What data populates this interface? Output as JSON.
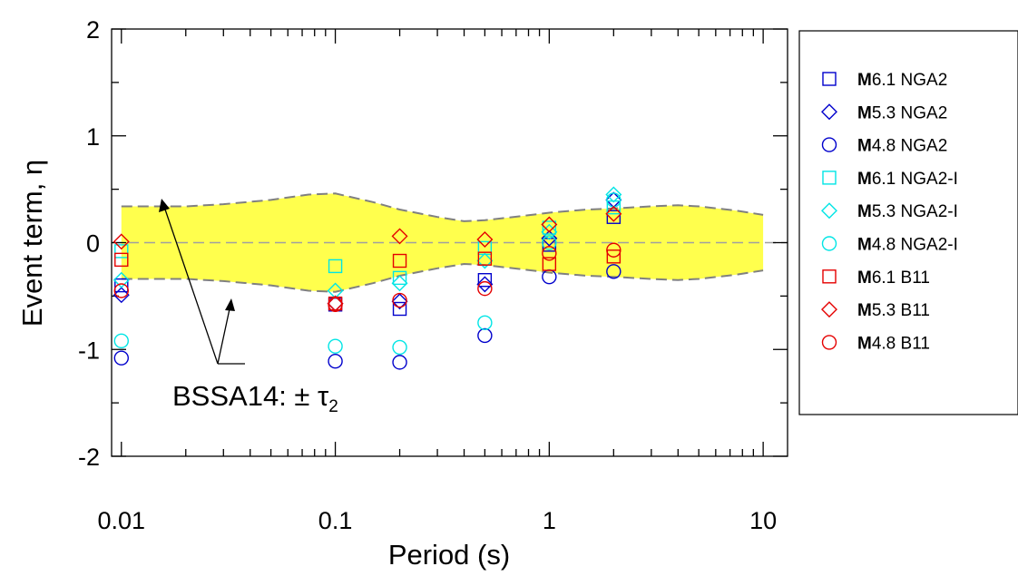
{
  "chart_data": {
    "type": "scatter",
    "xlabel": "Period (s)",
    "ylabel": "Event term, η",
    "xscale": "log",
    "xlim": [
      0.009,
      13
    ],
    "ylim": [
      -2,
      2
    ],
    "x_ticks": [
      0.01,
      0.1,
      1,
      10
    ],
    "x_tick_labels": [
      "0.01",
      "0.1",
      "1",
      "10"
    ],
    "y_ticks": [
      -2,
      -1,
      0,
      1,
      2
    ],
    "y_tick_labels": [
      "-2",
      "-1",
      "0",
      "1",
      "2"
    ],
    "legend_position": "right",
    "band": {
      "label": "BSSA14: ± τ",
      "label_subscript": "2",
      "color": "#ffff4d",
      "x": [
        0.01,
        0.02,
        0.03,
        0.05,
        0.075,
        0.1,
        0.15,
        0.2,
        0.3,
        0.4,
        0.5,
        0.75,
        1,
        1.5,
        2,
        3,
        4,
        5,
        7.5,
        10
      ],
      "upper": [
        0.34,
        0.34,
        0.36,
        0.4,
        0.45,
        0.46,
        0.38,
        0.31,
        0.24,
        0.2,
        0.21,
        0.25,
        0.28,
        0.31,
        0.32,
        0.34,
        0.35,
        0.34,
        0.3,
        0.26
      ],
      "lower": [
        -0.34,
        -0.34,
        -0.36,
        -0.4,
        -0.45,
        -0.46,
        -0.38,
        -0.31,
        -0.24,
        -0.2,
        -0.21,
        -0.25,
        -0.28,
        -0.31,
        -0.32,
        -0.34,
        -0.35,
        -0.34,
        -0.3,
        -0.26
      ]
    },
    "series": [
      {
        "name": "M6.1 NGA2",
        "bold": "M",
        "rest": "6.1 NGA2",
        "marker": "square",
        "color": "#0000cc",
        "x": [
          0.01,
          0.1,
          0.2,
          0.5,
          1,
          2
        ],
        "y": [
          -0.4,
          -0.58,
          -0.62,
          -0.35,
          -0.02,
          0.24
        ]
      },
      {
        "name": "M5.3 NGA2",
        "bold": "M",
        "rest": "5.3 NGA2",
        "marker": "diamond",
        "color": "#0000cc",
        "x": [
          0.01,
          0.1,
          0.2,
          0.5,
          1,
          2
        ],
        "y": [
          -0.49,
          -0.57,
          -0.55,
          -0.39,
          0.04,
          0.4
        ]
      },
      {
        "name": "M4.8 NGA2",
        "bold": "M",
        "rest": "4.8 NGA2",
        "marker": "circle",
        "color": "#0000cc",
        "x": [
          0.01,
          0.1,
          0.2,
          0.5,
          1,
          2
        ],
        "y": [
          -1.08,
          -1.11,
          -1.12,
          -0.87,
          -0.32,
          -0.27
        ]
      },
      {
        "name": "M6.1 NGA2-I",
        "bold": "M",
        "rest": "6.1 NGA2-I",
        "marker": "square",
        "color": "#00e5e5",
        "x": [
          0.01,
          0.1,
          0.2,
          0.5,
          1,
          2
        ],
        "y": [
          -0.08,
          -0.22,
          -0.33,
          -0.05,
          0.14,
          0.33
        ]
      },
      {
        "name": "M5.3 NGA2-I",
        "bold": "M",
        "rest": "5.3 NGA2-I",
        "marker": "diamond",
        "color": "#00e5e5",
        "x": [
          0.01,
          0.1,
          0.2,
          0.5,
          1,
          2
        ],
        "y": [
          -0.35,
          -0.45,
          -0.38,
          -0.17,
          0.1,
          0.45
        ]
      },
      {
        "name": "M4.8 NGA2-I",
        "bold": "M",
        "rest": "4.8 NGA2-I",
        "marker": "circle",
        "color": "#00e5e5",
        "x": [
          0.01,
          0.1,
          0.2,
          0.5,
          1,
          2
        ],
        "y": [
          -0.92,
          -0.97,
          -0.98,
          -0.75,
          0.0,
          0.4
        ]
      },
      {
        "name": "M6.1 B11",
        "bold": "M",
        "rest": "6.1 B11",
        "marker": "square",
        "color": "#e50000",
        "x": [
          0.01,
          0.1,
          0.2,
          0.5,
          1,
          2
        ],
        "y": [
          -0.16,
          -0.57,
          -0.17,
          -0.15,
          -0.2,
          -0.13
        ]
      },
      {
        "name": "M5.3 B11",
        "bold": "M",
        "rest": "5.3 B11",
        "marker": "diamond",
        "color": "#e50000",
        "x": [
          0.01,
          0.1,
          0.2,
          0.5,
          1,
          2
        ],
        "y": [
          0.01,
          -0.57,
          0.06,
          0.03,
          0.17,
          0.27
        ]
      },
      {
        "name": "M4.8 B11",
        "bold": "M",
        "rest": "4.8 B11",
        "marker": "circle",
        "color": "#e50000",
        "x": [
          0.01,
          0.1,
          0.2,
          0.5,
          1,
          2
        ],
        "y": [
          -0.45,
          -0.58,
          -0.54,
          -0.43,
          -0.1,
          -0.07
        ]
      }
    ]
  }
}
